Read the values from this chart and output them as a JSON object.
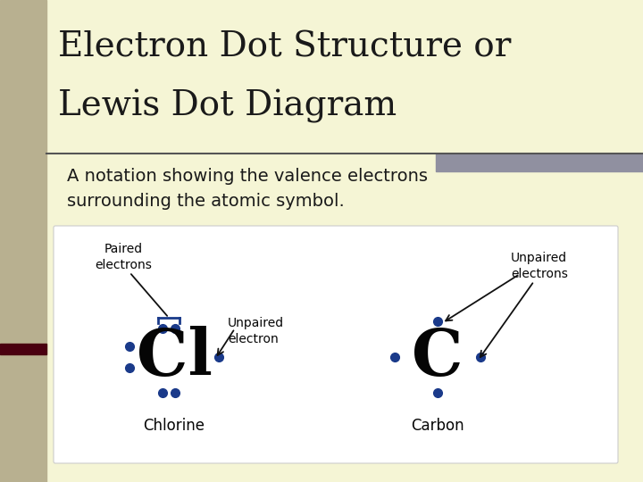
{
  "title_line1": "Electron Dot Structure or",
  "title_line2": "Lewis Dot Diagram",
  "subtitle": "A notation showing the valence electrons\nsurrounding the atomic symbol.",
  "bg_color": "#f5f5d5",
  "left_sidebar_color": "#b8b090",
  "dark_sidebar_color": "#4a0010",
  "title_color": "#1a1a1a",
  "subtitle_color": "#1a1a1a",
  "dot_color": "#1a3a8a",
  "atom_color": "#050505",
  "box_bg": "#ffffff",
  "box_border": "#cccccc",
  "cl_symbol": "Cl",
  "c_symbol": "C",
  "cl_label": "Chlorine",
  "c_label": "Carbon",
  "paired_label": "Paired\nelectrons",
  "unpaired_el_label": "Unpaired\nelectron",
  "unpaired_els_label": "Unpaired\nelectrons",
  "separator_color": "#555555",
  "accent_color": "#9090a0",
  "arrow_color": "#111111"
}
